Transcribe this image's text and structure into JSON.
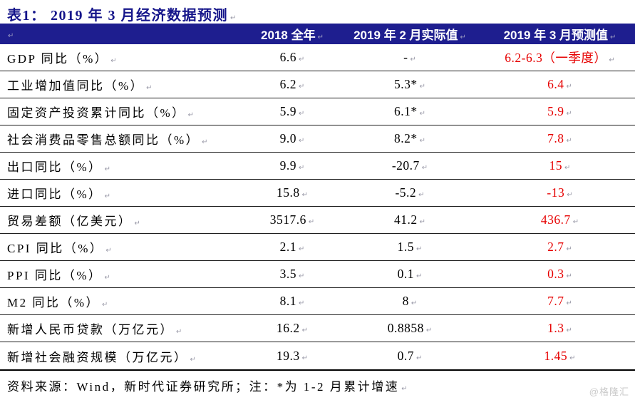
{
  "title": "表1： 2019 年 3 月经济数据预测",
  "marks": {
    "return_mark": "↵"
  },
  "colors": {
    "header_bg": "#1e1e8f",
    "title_navy": "#15158a",
    "forecast_red": "#e60000"
  },
  "table": {
    "columns": [
      "",
      "2018 全年",
      "2019 年 2 月实际值",
      "2019 年 3 月预测值"
    ],
    "rows": [
      {
        "label": "GDP 同比（%）",
        "y2018": "6.6",
        "feb2019": "-",
        "mar2019": "6.2-6.3（一季度）"
      },
      {
        "label": "工业增加值同比（%）",
        "y2018": "6.2",
        "feb2019": "5.3*",
        "mar2019": "6.4"
      },
      {
        "label": "固定资产投资累计同比（%）",
        "y2018": "5.9",
        "feb2019": "6.1*",
        "mar2019": "5.9"
      },
      {
        "label": "社会消费品零售总额同比（%）",
        "y2018": "9.0",
        "feb2019": "8.2*",
        "mar2019": "7.8"
      },
      {
        "label": "出口同比（%）",
        "y2018": "9.9",
        "feb2019": "-20.7",
        "mar2019": "15"
      },
      {
        "label": "进口同比（%）",
        "y2018": "15.8",
        "feb2019": "-5.2",
        "mar2019": "-13"
      },
      {
        "label": "贸易差额（亿美元）",
        "y2018": "3517.6",
        "feb2019": "41.2",
        "mar2019": "436.7"
      },
      {
        "label": "CPI 同比（%）",
        "y2018": "2.1",
        "feb2019": "1.5",
        "mar2019": "2.7"
      },
      {
        "label": "PPI 同比（%）",
        "y2018": "3.5",
        "feb2019": "0.1",
        "mar2019": "0.3"
      },
      {
        "label": "M2 同比（%）",
        "y2018": "8.1",
        "feb2019": "8",
        "mar2019": "7.7"
      },
      {
        "label": "新增人民币贷款（万亿元）",
        "y2018": "16.2",
        "feb2019": "0.8858",
        "mar2019": "1.3"
      },
      {
        "label": "新增社会融资规模（万亿元）",
        "y2018": "19.3",
        "feb2019": "0.7",
        "mar2019": "1.45"
      }
    ]
  },
  "footer": {
    "source_note": "资料来源：Wind，新时代证券研究所；注：*为 1-2 月累计增速",
    "watermark": "@格隆汇"
  },
  "chart_data": {
    "type": "table",
    "title": "表1： 2019 年 3 月经济数据预测",
    "columns": [
      "",
      "2018 全年",
      "2019 年 2 月实际值",
      "2019 年 3 月预测值"
    ],
    "rows": [
      [
        "GDP 同比（%）",
        "6.6",
        "-",
        "6.2-6.3（一季度）"
      ],
      [
        "工业增加值同比（%）",
        "6.2",
        "5.3*",
        "6.4"
      ],
      [
        "固定资产投资累计同比（%）",
        "5.9",
        "6.1*",
        "5.9"
      ],
      [
        "社会消费品零售总额同比（%）",
        "9.0",
        "8.2*",
        "7.8"
      ],
      [
        "出口同比（%）",
        "9.9",
        "-20.7",
        "15"
      ],
      [
        "进口同比（%）",
        "15.8",
        "-5.2",
        "-13"
      ],
      [
        "贸易差额（亿美元）",
        "3517.6",
        "41.2",
        "436.7"
      ],
      [
        "CPI 同比（%）",
        "2.1",
        "1.5",
        "2.7"
      ],
      [
        "PPI 同比（%）",
        "3.5",
        "0.1",
        "0.3"
      ],
      [
        "M2 同比（%）",
        "8.1",
        "8",
        "7.7"
      ],
      [
        "新增人民币贷款（万亿元）",
        "16.2",
        "0.8858",
        "1.3"
      ],
      [
        "新增社会融资规模（万亿元）",
        "19.3",
        "0.7",
        "1.45"
      ]
    ],
    "notes": "第四列（2019 年 3 月预测值）为红色字体；*为 1-2 月累计增速"
  }
}
